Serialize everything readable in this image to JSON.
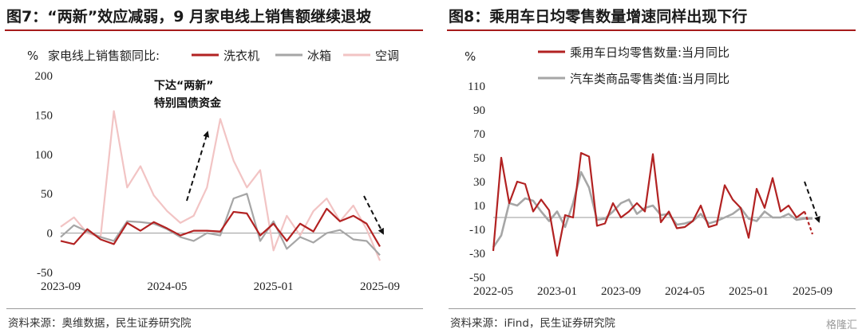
{
  "left": {
    "title": "图7：“两新”效应减弱，9 月家电线上销售额继续退坡",
    "source": "资料来源：奥维数据，民生证券研究院",
    "unit": "%",
    "legend_prefix": "家电线上销售额同比:",
    "annotation": [
      "下达“两新”",
      "特别国债资金"
    ]
  },
  "right": {
    "title": "图8：乘用车日均零售数量增速同样出现下行",
    "source": "资料来源：iFind，民生证券研究院",
    "unit": "%"
  },
  "watermark": "格隆汇",
  "colors": {
    "red": "#b22222",
    "grey": "#a6a6a6",
    "pink": "#f2c4c4",
    "rule": "#a61b1b"
  },
  "chart_data": [
    {
      "type": "line",
      "ylim": [
        -50,
        200
      ],
      "yticks": [
        -50,
        0,
        50,
        100,
        150,
        200
      ],
      "xtick_labels": [
        "2023-09",
        "2024-05",
        "2025-01",
        "2025-09"
      ],
      "xtick_index": [
        0,
        8,
        16,
        24
      ],
      "x": [
        "2023-09",
        "2023-10",
        "2023-11",
        "2023-12",
        "2024-01",
        "2024-02",
        "2024-03",
        "2024-04",
        "2024-05",
        "2024-06",
        "2024-07",
        "2024-08",
        "2024-09",
        "2024-10",
        "2024-11",
        "2024-12",
        "2025-01",
        "2025-02",
        "2025-03",
        "2025-04",
        "2025-05",
        "2025-06",
        "2025-07",
        "2025-08",
        "2025-09"
      ],
      "series": [
        {
          "name": "洗衣机",
          "color": "#b22222",
          "values": [
            -10,
            -14,
            5,
            -8,
            -14,
            13,
            3,
            14,
            6,
            -3,
            3,
            3,
            2,
            27,
            25,
            -3,
            12,
            -10,
            12,
            2,
            31,
            15,
            22,
            12,
            -17
          ]
        },
        {
          "name": "冰箱",
          "color": "#a6a6a6",
          "values": [
            -5,
            10,
            2,
            -5,
            -10,
            15,
            14,
            12,
            5,
            -5,
            -10,
            0,
            -3,
            44,
            50,
            -10,
            15,
            -20,
            -5,
            -12,
            0,
            4,
            -8,
            -10,
            -28
          ]
        },
        {
          "name": "空调",
          "color": "#f2c4c4",
          "values": [
            8,
            20,
            0,
            -5,
            155,
            58,
            85,
            48,
            28,
            13,
            22,
            58,
            145,
            92,
            58,
            80,
            -22,
            22,
            -3,
            28,
            44,
            15,
            35,
            5,
            -35
          ]
        }
      ]
    },
    {
      "type": "line",
      "ylim": [
        -50,
        110
      ],
      "yticks": [
        -50,
        -30,
        -10,
        10,
        30,
        50,
        70,
        90,
        110
      ],
      "xtick_labels": [
        "2022-05",
        "2023-01",
        "2023-09",
        "2024-05",
        "2025-01",
        "2025-09"
      ],
      "xtick_index": [
        0,
        8,
        16,
        24,
        32,
        40
      ],
      "x": [
        "2022-05",
        "2022-06",
        "2022-07",
        "2022-08",
        "2022-09",
        "2022-10",
        "2022-11",
        "2022-12",
        "2023-01",
        "2023-02",
        "2023-03",
        "2023-04",
        "2023-05",
        "2023-06",
        "2023-07",
        "2023-08",
        "2023-09",
        "2023-10",
        "2023-11",
        "2023-12",
        "2024-01",
        "2024-02",
        "2024-03",
        "2024-04",
        "2024-05",
        "2024-06",
        "2024-07",
        "2024-08",
        "2024-09",
        "2024-10",
        "2024-11",
        "2024-12",
        "2025-01",
        "2025-02",
        "2025-03",
        "2025-04",
        "2025-05",
        "2025-06",
        "2025-07",
        "2025-08",
        "2025-09"
      ],
      "series": [
        {
          "name": "乘用车日均零售数量:当月同比",
          "color": "#b22222",
          "values": [
            -28,
            50,
            12,
            30,
            28,
            5,
            15,
            6,
            -32,
            2,
            0,
            54,
            51,
            -7,
            -5,
            12,
            0,
            5,
            12,
            5,
            53,
            -4,
            5,
            -9,
            -8,
            -3,
            10,
            -8,
            -6,
            27,
            15,
            8,
            -17,
            24,
            8,
            33,
            5,
            10,
            0,
            5,
            -14
          ]
        },
        {
          "name": "汽车类商品零售类值:当月同比",
          "color": "#a6a6a6",
          "values": [
            -25,
            -15,
            12,
            10,
            16,
            14,
            5,
            -3,
            5,
            -8,
            12,
            38,
            25,
            -2,
            -1,
            5,
            12,
            15,
            3,
            8,
            10,
            2,
            3,
            -6,
            -5,
            -3,
            3,
            -5,
            -3,
            0,
            3,
            8,
            -1,
            -3,
            5,
            0,
            0,
            3,
            -2,
            -1,
            -1
          ]
        }
      ]
    }
  ]
}
